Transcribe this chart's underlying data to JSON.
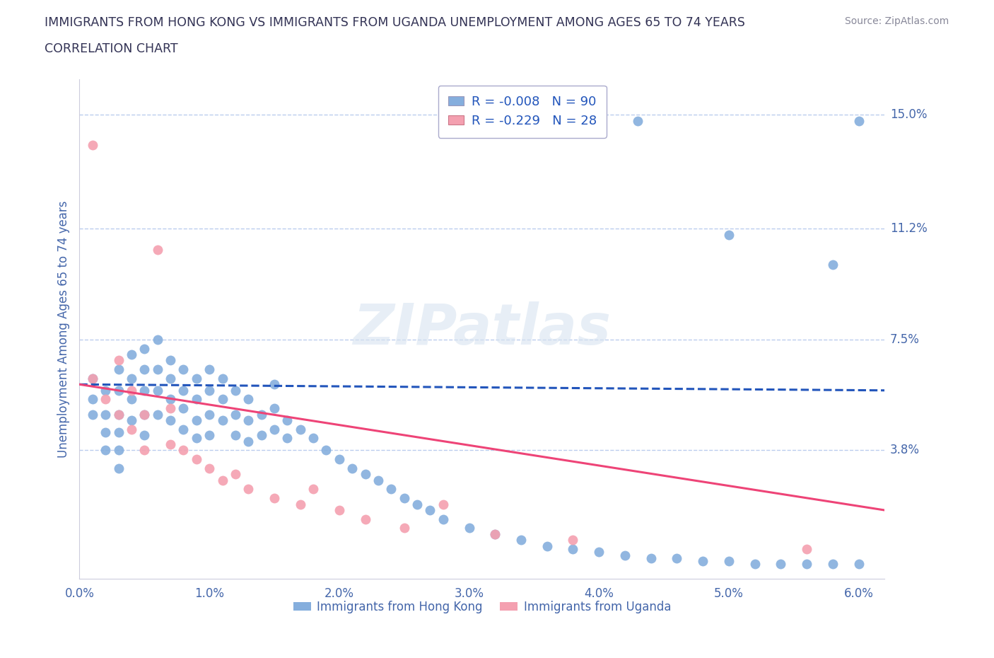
{
  "title_line1": "IMMIGRANTS FROM HONG KONG VS IMMIGRANTS FROM UGANDA UNEMPLOYMENT AMONG AGES 65 TO 74 YEARS",
  "title_line2": "CORRELATION CHART",
  "source_text": "Source: ZipAtlas.com",
  "ylabel": "Unemployment Among Ages 65 to 74 years",
  "xlim": [
    0.0,
    0.062
  ],
  "ylim": [
    -0.005,
    0.162
  ],
  "yticks": [
    0.038,
    0.075,
    0.112,
    0.15
  ],
  "ytick_labels": [
    "3.8%",
    "7.5%",
    "11.2%",
    "15.0%"
  ],
  "xticks": [
    0.0,
    0.01,
    0.02,
    0.03,
    0.04,
    0.05,
    0.06
  ],
  "xtick_labels": [
    "0.0%",
    "1.0%",
    "2.0%",
    "3.0%",
    "4.0%",
    "5.0%",
    "6.0%"
  ],
  "hk_color": "#85AEDD",
  "ug_color": "#F4A0B0",
  "hk_line_color": "#2255BB",
  "ug_line_color": "#EE4477",
  "title_color": "#333355",
  "tick_color": "#4466AA",
  "grid_color": "#BBCCEE",
  "watermark": "ZIPatlas",
  "legend_hk": "R = -0.008   N = 90",
  "legend_ug": "R = -0.229   N = 28",
  "legend_label_hk": "Immigrants from Hong Kong",
  "legend_label_ug": "Immigrants from Uganda",
  "hk_scatter_x": [
    0.001,
    0.001,
    0.001,
    0.002,
    0.002,
    0.002,
    0.002,
    0.003,
    0.003,
    0.003,
    0.003,
    0.003,
    0.003,
    0.004,
    0.004,
    0.004,
    0.004,
    0.005,
    0.005,
    0.005,
    0.005,
    0.005,
    0.006,
    0.006,
    0.006,
    0.006,
    0.007,
    0.007,
    0.007,
    0.007,
    0.008,
    0.008,
    0.008,
    0.008,
    0.009,
    0.009,
    0.009,
    0.009,
    0.01,
    0.01,
    0.01,
    0.01,
    0.011,
    0.011,
    0.011,
    0.012,
    0.012,
    0.012,
    0.013,
    0.013,
    0.013,
    0.014,
    0.014,
    0.015,
    0.015,
    0.015,
    0.016,
    0.016,
    0.017,
    0.018,
    0.019,
    0.02,
    0.021,
    0.022,
    0.023,
    0.024,
    0.025,
    0.026,
    0.027,
    0.028,
    0.03,
    0.032,
    0.034,
    0.036,
    0.038,
    0.04,
    0.042,
    0.044,
    0.046,
    0.048,
    0.05,
    0.052,
    0.054,
    0.056,
    0.058,
    0.06,
    0.043,
    0.05,
    0.058,
    0.06
  ],
  "hk_scatter_y": [
    0.062,
    0.055,
    0.05,
    0.058,
    0.05,
    0.044,
    0.038,
    0.065,
    0.058,
    0.05,
    0.044,
    0.038,
    0.032,
    0.07,
    0.062,
    0.055,
    0.048,
    0.072,
    0.065,
    0.058,
    0.05,
    0.043,
    0.075,
    0.065,
    0.058,
    0.05,
    0.068,
    0.062,
    0.055,
    0.048,
    0.065,
    0.058,
    0.052,
    0.045,
    0.062,
    0.055,
    0.048,
    0.042,
    0.065,
    0.058,
    0.05,
    0.043,
    0.062,
    0.055,
    0.048,
    0.058,
    0.05,
    0.043,
    0.055,
    0.048,
    0.041,
    0.05,
    0.043,
    0.06,
    0.052,
    0.045,
    0.048,
    0.042,
    0.045,
    0.042,
    0.038,
    0.035,
    0.032,
    0.03,
    0.028,
    0.025,
    0.022,
    0.02,
    0.018,
    0.015,
    0.012,
    0.01,
    0.008,
    0.006,
    0.005,
    0.004,
    0.003,
    0.002,
    0.002,
    0.001,
    0.001,
    0.0,
    0.0,
    0.0,
    0.0,
    0.0,
    0.148,
    0.11,
    0.1,
    0.148
  ],
  "ug_scatter_x": [
    0.001,
    0.001,
    0.002,
    0.003,
    0.003,
    0.004,
    0.004,
    0.005,
    0.005,
    0.006,
    0.007,
    0.007,
    0.008,
    0.009,
    0.01,
    0.011,
    0.012,
    0.013,
    0.015,
    0.017,
    0.018,
    0.02,
    0.022,
    0.025,
    0.028,
    0.032,
    0.038,
    0.056
  ],
  "ug_scatter_y": [
    0.062,
    0.14,
    0.055,
    0.05,
    0.068,
    0.045,
    0.058,
    0.038,
    0.05,
    0.105,
    0.04,
    0.052,
    0.038,
    0.035,
    0.032,
    0.028,
    0.03,
    0.025,
    0.022,
    0.02,
    0.025,
    0.018,
    0.015,
    0.012,
    0.02,
    0.01,
    0.008,
    0.005
  ],
  "hk_trend_x": [
    0.0,
    0.062
  ],
  "hk_trend_y": [
    0.06,
    0.058
  ],
  "ug_trend_x": [
    0.0,
    0.062
  ],
  "ug_trend_y": [
    0.06,
    0.018
  ]
}
